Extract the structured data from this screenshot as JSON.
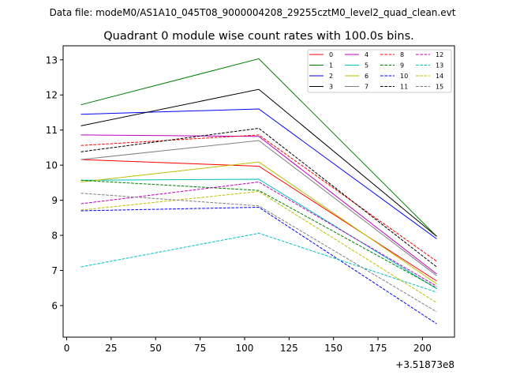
{
  "figure": {
    "suptitle": "Data file: modeM0/AS1A10_045T08_9000004208_29255cztM0_level2_quad_clean.evt",
    "title": "Quadrant 0 module wise count rates with 100.0s bins."
  },
  "chart_data": {
    "type": "line",
    "title": "Quadrant 0 module wise count rates with 100.0s bins.",
    "xlabel": "",
    "ylabel": "",
    "x_offset_label": "+3.51873e8",
    "xlim": [
      -2,
      218
    ],
    "ylim": [
      5.1,
      13.4
    ],
    "xticks": [
      0,
      25,
      50,
      75,
      100,
      125,
      150,
      175,
      200
    ],
    "yticks": [
      6,
      7,
      8,
      9,
      10,
      11,
      12,
      13
    ],
    "x": [
      8,
      108,
      208
    ],
    "legend_position": "top-right",
    "series": [
      {
        "name": "0",
        "color": "#ff0000",
        "dash": "solid",
        "values": [
          10.16,
          9.97,
          6.7
        ]
      },
      {
        "name": "1",
        "color": "#008000",
        "dash": "solid",
        "values": [
          11.72,
          13.03,
          7.97
        ]
      },
      {
        "name": "2",
        "color": "#0000ff",
        "dash": "solid",
        "values": [
          11.45,
          11.6,
          7.9
        ]
      },
      {
        "name": "3",
        "color": "#000000",
        "dash": "solid",
        "values": [
          11.12,
          12.16,
          7.97
        ]
      },
      {
        "name": "4",
        "color": "#bf00bf",
        "dash": "solid",
        "values": [
          10.86,
          10.82,
          6.9
        ]
      },
      {
        "name": "5",
        "color": "#00bfbf",
        "dash": "solid",
        "values": [
          9.57,
          9.6,
          6.48
        ]
      },
      {
        "name": "6",
        "color": "#bfbf00",
        "dash": "solid",
        "values": [
          9.52,
          10.09,
          6.62
        ]
      },
      {
        "name": "7",
        "color": "#808080",
        "dash": "solid",
        "values": [
          10.16,
          10.7,
          6.85
        ]
      },
      {
        "name": "8",
        "color": "#ff0000",
        "dash": "dashed",
        "values": [
          10.56,
          10.86,
          7.26
        ]
      },
      {
        "name": "9",
        "color": "#008000",
        "dash": "dashed",
        "values": [
          9.57,
          9.28,
          6.5
        ]
      },
      {
        "name": "10",
        "color": "#0000ff",
        "dash": "dashed",
        "values": [
          8.7,
          8.8,
          5.48
        ]
      },
      {
        "name": "11",
        "color": "#000000",
        "dash": "dashed",
        "values": [
          10.38,
          11.05,
          7.1
        ]
      },
      {
        "name": "12",
        "color": "#bf00bf",
        "dash": "dashed",
        "values": [
          8.9,
          9.52,
          6.55
        ]
      },
      {
        "name": "13",
        "color": "#00bfbf",
        "dash": "dashed",
        "values": [
          7.1,
          8.06,
          6.38
        ]
      },
      {
        "name": "14",
        "color": "#bfbf00",
        "dash": "dashed",
        "values": [
          8.72,
          9.25,
          6.08
        ]
      },
      {
        "name": "15",
        "color": "#808080",
        "dash": "dashed",
        "values": [
          9.2,
          8.84,
          5.82
        ]
      }
    ]
  }
}
